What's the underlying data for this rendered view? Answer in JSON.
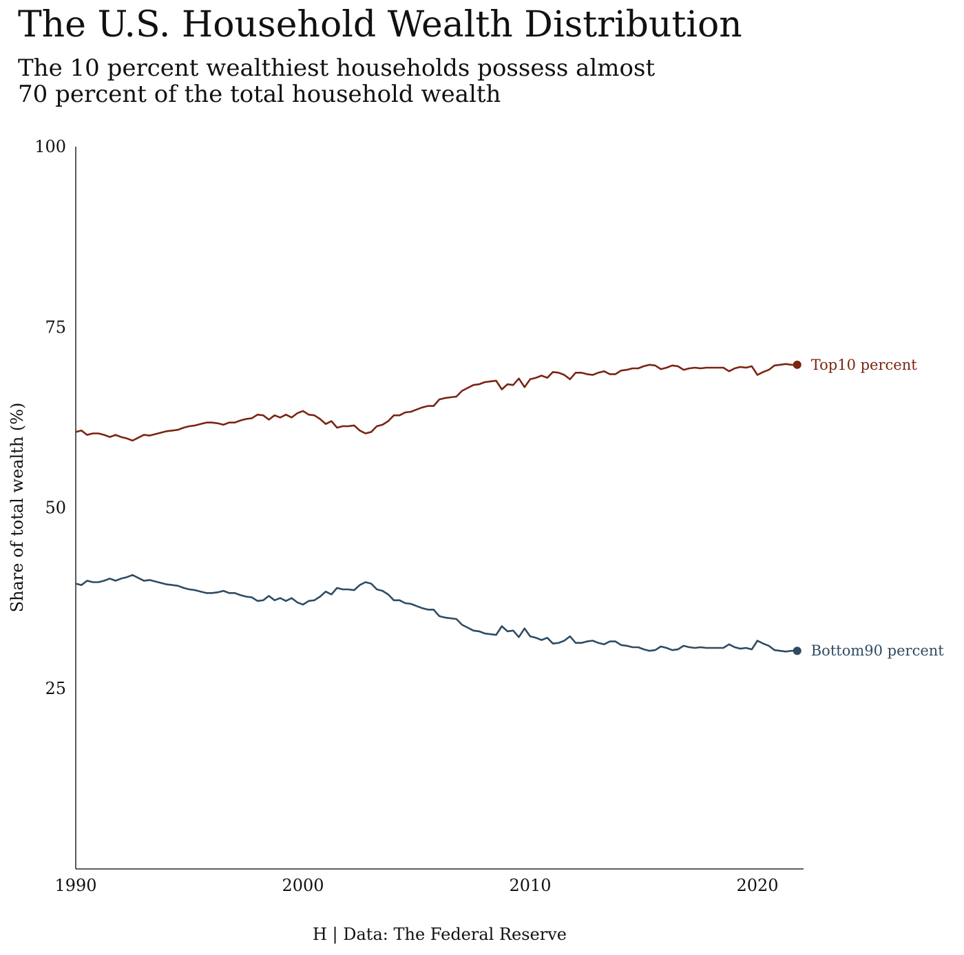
{
  "title": "The U.S. Household Wealth Distribution",
  "subtitle": {
    "line1": "The 10 percent wealthiest households possess almost",
    "line2": "70 percent of the total household wealth"
  },
  "caption": "H | Data: The Federal Reserve",
  "colors": {
    "top10": "#7a2412",
    "bottom90": "#2f4b62",
    "axis": "#000000"
  },
  "chart_data": {
    "type": "line",
    "ylabel": "Share of total wealth (%)",
    "xlabel": "",
    "ylim": [
      0,
      100
    ],
    "xlim": [
      1990,
      2022
    ],
    "x_ticks": [
      1990,
      2000,
      2010,
      2020
    ],
    "y_ticks": [
      25,
      50,
      75,
      100
    ],
    "grid": false,
    "series": [
      {
        "name": "Top10 percent",
        "label": "Top10 percent",
        "color": "#7a2412",
        "points": [
          [
            1990.0,
            60.5
          ],
          [
            1990.25,
            60.7
          ],
          [
            1990.5,
            60.1
          ],
          [
            1990.75,
            60.3
          ],
          [
            1991.0,
            60.3
          ],
          [
            1991.25,
            60.1
          ],
          [
            1991.5,
            59.8
          ],
          [
            1991.75,
            60.1
          ],
          [
            1992.0,
            59.8
          ],
          [
            1992.25,
            59.6
          ],
          [
            1992.5,
            59.3
          ],
          [
            1992.75,
            59.7
          ],
          [
            1993.0,
            60.1
          ],
          [
            1993.25,
            60.0
          ],
          [
            1993.5,
            60.2
          ],
          [
            1993.75,
            60.4
          ],
          [
            1994.0,
            60.6
          ],
          [
            1994.25,
            60.7
          ],
          [
            1994.5,
            60.8
          ],
          [
            1994.75,
            61.1
          ],
          [
            1995.0,
            61.3
          ],
          [
            1995.25,
            61.4
          ],
          [
            1995.5,
            61.6
          ],
          [
            1995.75,
            61.8
          ],
          [
            1996.0,
            61.8
          ],
          [
            1996.25,
            61.7
          ],
          [
            1996.5,
            61.5
          ],
          [
            1996.75,
            61.8
          ],
          [
            1997.0,
            61.8
          ],
          [
            1997.25,
            62.1
          ],
          [
            1997.5,
            62.3
          ],
          [
            1997.75,
            62.4
          ],
          [
            1998.0,
            62.9
          ],
          [
            1998.25,
            62.8
          ],
          [
            1998.5,
            62.2
          ],
          [
            1998.75,
            62.8
          ],
          [
            1999.0,
            62.5
          ],
          [
            1999.25,
            62.9
          ],
          [
            1999.5,
            62.5
          ],
          [
            1999.75,
            63.1
          ],
          [
            2000.0,
            63.4
          ],
          [
            2000.25,
            62.9
          ],
          [
            2000.5,
            62.8
          ],
          [
            2000.75,
            62.3
          ],
          [
            2001.0,
            61.6
          ],
          [
            2001.25,
            62.0
          ],
          [
            2001.5,
            61.1
          ],
          [
            2001.75,
            61.3
          ],
          [
            2002.0,
            61.3
          ],
          [
            2002.25,
            61.4
          ],
          [
            2002.5,
            60.7
          ],
          [
            2002.75,
            60.3
          ],
          [
            2003.0,
            60.5
          ],
          [
            2003.25,
            61.3
          ],
          [
            2003.5,
            61.5
          ],
          [
            2003.75,
            62.0
          ],
          [
            2004.0,
            62.8
          ],
          [
            2004.25,
            62.8
          ],
          [
            2004.5,
            63.2
          ],
          [
            2004.75,
            63.3
          ],
          [
            2005.0,
            63.6
          ],
          [
            2005.25,
            63.9
          ],
          [
            2005.5,
            64.1
          ],
          [
            2005.75,
            64.1
          ],
          [
            2006.0,
            65.0
          ],
          [
            2006.25,
            65.2
          ],
          [
            2006.5,
            65.3
          ],
          [
            2006.75,
            65.4
          ],
          [
            2007.0,
            66.2
          ],
          [
            2007.25,
            66.6
          ],
          [
            2007.5,
            67.0
          ],
          [
            2007.75,
            67.1
          ],
          [
            2008.0,
            67.4
          ],
          [
            2008.25,
            67.5
          ],
          [
            2008.5,
            67.6
          ],
          [
            2008.75,
            66.4
          ],
          [
            2009.0,
            67.1
          ],
          [
            2009.25,
            67.0
          ],
          [
            2009.5,
            67.9
          ],
          [
            2009.75,
            66.7
          ],
          [
            2010.0,
            67.8
          ],
          [
            2010.25,
            68.0
          ],
          [
            2010.5,
            68.3
          ],
          [
            2010.75,
            68.0
          ],
          [
            2011.0,
            68.8
          ],
          [
            2011.25,
            68.7
          ],
          [
            2011.5,
            68.4
          ],
          [
            2011.75,
            67.8
          ],
          [
            2012.0,
            68.7
          ],
          [
            2012.25,
            68.7
          ],
          [
            2012.5,
            68.5
          ],
          [
            2012.75,
            68.4
          ],
          [
            2013.0,
            68.7
          ],
          [
            2013.25,
            68.9
          ],
          [
            2013.5,
            68.5
          ],
          [
            2013.75,
            68.5
          ],
          [
            2014.0,
            69.0
          ],
          [
            2014.25,
            69.1
          ],
          [
            2014.5,
            69.3
          ],
          [
            2014.75,
            69.3
          ],
          [
            2015.0,
            69.6
          ],
          [
            2015.25,
            69.8
          ],
          [
            2015.5,
            69.7
          ],
          [
            2015.75,
            69.2
          ],
          [
            2016.0,
            69.4
          ],
          [
            2016.25,
            69.7
          ],
          [
            2016.5,
            69.6
          ],
          [
            2016.75,
            69.1
          ],
          [
            2017.0,
            69.3
          ],
          [
            2017.25,
            69.4
          ],
          [
            2017.5,
            69.3
          ],
          [
            2017.75,
            69.4
          ],
          [
            2018.0,
            69.4
          ],
          [
            2018.25,
            69.4
          ],
          [
            2018.5,
            69.4
          ],
          [
            2018.75,
            68.9
          ],
          [
            2019.0,
            69.3
          ],
          [
            2019.25,
            69.5
          ],
          [
            2019.5,
            69.4
          ],
          [
            2019.75,
            69.6
          ],
          [
            2020.0,
            68.4
          ],
          [
            2020.25,
            68.8
          ],
          [
            2020.5,
            69.1
          ],
          [
            2020.75,
            69.7
          ],
          [
            2021.0,
            69.8
          ],
          [
            2021.25,
            69.9
          ],
          [
            2021.5,
            69.8
          ],
          [
            2021.75,
            69.8
          ]
        ]
      },
      {
        "name": "Bottom90 percent",
        "label": "Bottom90 percent",
        "color": "#2f4b62",
        "points": [
          [
            1990.0,
            39.5
          ],
          [
            1990.25,
            39.3
          ],
          [
            1990.5,
            39.9
          ],
          [
            1990.75,
            39.7
          ],
          [
            1991.0,
            39.7
          ],
          [
            1991.25,
            39.9
          ],
          [
            1991.5,
            40.2
          ],
          [
            1991.75,
            39.9
          ],
          [
            1992.0,
            40.2
          ],
          [
            1992.25,
            40.4
          ],
          [
            1992.5,
            40.7
          ],
          [
            1992.75,
            40.3
          ],
          [
            1993.0,
            39.9
          ],
          [
            1993.25,
            40.0
          ],
          [
            1993.5,
            39.8
          ],
          [
            1993.75,
            39.6
          ],
          [
            1994.0,
            39.4
          ],
          [
            1994.25,
            39.3
          ],
          [
            1994.5,
            39.2
          ],
          [
            1994.75,
            38.9
          ],
          [
            1995.0,
            38.7
          ],
          [
            1995.25,
            38.6
          ],
          [
            1995.5,
            38.4
          ],
          [
            1995.75,
            38.2
          ],
          [
            1996.0,
            38.2
          ],
          [
            1996.25,
            38.3
          ],
          [
            1996.5,
            38.5
          ],
          [
            1996.75,
            38.2
          ],
          [
            1997.0,
            38.2
          ],
          [
            1997.25,
            37.9
          ],
          [
            1997.5,
            37.7
          ],
          [
            1997.75,
            37.6
          ],
          [
            1998.0,
            37.1
          ],
          [
            1998.25,
            37.2
          ],
          [
            1998.5,
            37.8
          ],
          [
            1998.75,
            37.2
          ],
          [
            1999.0,
            37.5
          ],
          [
            1999.25,
            37.1
          ],
          [
            1999.5,
            37.5
          ],
          [
            1999.75,
            36.9
          ],
          [
            2000.0,
            36.6
          ],
          [
            2000.25,
            37.1
          ],
          [
            2000.5,
            37.2
          ],
          [
            2000.75,
            37.7
          ],
          [
            2001.0,
            38.4
          ],
          [
            2001.25,
            38.0
          ],
          [
            2001.5,
            38.9
          ],
          [
            2001.75,
            38.7
          ],
          [
            2002.0,
            38.7
          ],
          [
            2002.25,
            38.6
          ],
          [
            2002.5,
            39.3
          ],
          [
            2002.75,
            39.7
          ],
          [
            2003.0,
            39.5
          ],
          [
            2003.25,
            38.7
          ],
          [
            2003.5,
            38.5
          ],
          [
            2003.75,
            38.0
          ],
          [
            2004.0,
            37.2
          ],
          [
            2004.25,
            37.2
          ],
          [
            2004.5,
            36.8
          ],
          [
            2004.75,
            36.7
          ],
          [
            2005.0,
            36.4
          ],
          [
            2005.25,
            36.1
          ],
          [
            2005.5,
            35.9
          ],
          [
            2005.75,
            35.9
          ],
          [
            2006.0,
            35.0
          ],
          [
            2006.25,
            34.8
          ],
          [
            2006.5,
            34.7
          ],
          [
            2006.75,
            34.6
          ],
          [
            2007.0,
            33.8
          ],
          [
            2007.25,
            33.4
          ],
          [
            2007.5,
            33.0
          ],
          [
            2007.75,
            32.9
          ],
          [
            2008.0,
            32.6
          ],
          [
            2008.25,
            32.5
          ],
          [
            2008.5,
            32.4
          ],
          [
            2008.75,
            33.6
          ],
          [
            2009.0,
            32.9
          ],
          [
            2009.25,
            33.0
          ],
          [
            2009.5,
            32.1
          ],
          [
            2009.75,
            33.3
          ],
          [
            2010.0,
            32.2
          ],
          [
            2010.25,
            32.0
          ],
          [
            2010.5,
            31.7
          ],
          [
            2010.75,
            32.0
          ],
          [
            2011.0,
            31.2
          ],
          [
            2011.25,
            31.3
          ],
          [
            2011.5,
            31.6
          ],
          [
            2011.75,
            32.2
          ],
          [
            2012.0,
            31.3
          ],
          [
            2012.25,
            31.3
          ],
          [
            2012.5,
            31.5
          ],
          [
            2012.75,
            31.6
          ],
          [
            2013.0,
            31.3
          ],
          [
            2013.25,
            31.1
          ],
          [
            2013.5,
            31.5
          ],
          [
            2013.75,
            31.5
          ],
          [
            2014.0,
            31.0
          ],
          [
            2014.25,
            30.9
          ],
          [
            2014.5,
            30.7
          ],
          [
            2014.75,
            30.7
          ],
          [
            2015.0,
            30.4
          ],
          [
            2015.25,
            30.2
          ],
          [
            2015.5,
            30.3
          ],
          [
            2015.75,
            30.8
          ],
          [
            2016.0,
            30.6
          ],
          [
            2016.25,
            30.3
          ],
          [
            2016.5,
            30.4
          ],
          [
            2016.75,
            30.9
          ],
          [
            2017.0,
            30.7
          ],
          [
            2017.25,
            30.6
          ],
          [
            2017.5,
            30.7
          ],
          [
            2017.75,
            30.6
          ],
          [
            2018.0,
            30.6
          ],
          [
            2018.25,
            30.6
          ],
          [
            2018.5,
            30.6
          ],
          [
            2018.75,
            31.1
          ],
          [
            2019.0,
            30.7
          ],
          [
            2019.25,
            30.5
          ],
          [
            2019.5,
            30.6
          ],
          [
            2019.75,
            30.4
          ],
          [
            2020.0,
            31.6
          ],
          [
            2020.25,
            31.2
          ],
          [
            2020.5,
            30.9
          ],
          [
            2020.75,
            30.3
          ],
          [
            2021.0,
            30.2
          ],
          [
            2021.25,
            30.1
          ],
          [
            2021.5,
            30.2
          ],
          [
            2021.75,
            30.2
          ]
        ]
      }
    ]
  }
}
